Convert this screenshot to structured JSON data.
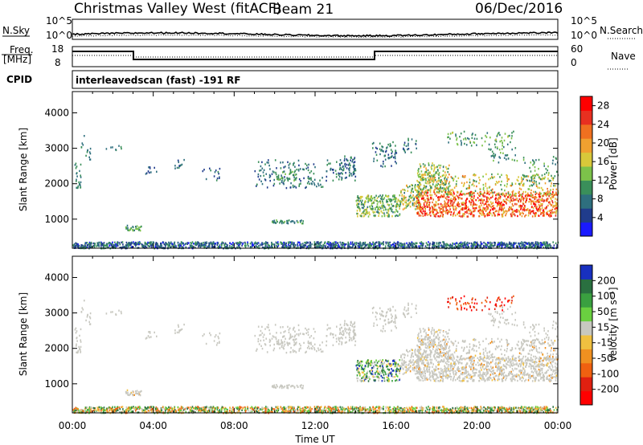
{
  "header": {
    "title": "Christmas Valley West (fitACF)",
    "beam": "Beam 21",
    "date": "06/Dec/2016"
  },
  "status_panels": {
    "nsky_label": "N.Sky",
    "nsearch_label": "N.Search",
    "nsky_ticks": [
      "10^5",
      "10^0"
    ],
    "nsearch_ticks": [
      "10^5",
      "10^0"
    ],
    "freq_label_line1": "Freq.",
    "freq_label_line2": "[MHz]",
    "freq_ticks": [
      "18",
      "8"
    ],
    "nave_label": "Nave",
    "nave_ticks": [
      "60",
      "0"
    ],
    "cpid_label": "CPID",
    "cpid_text": "interleavedscan (fast) -191 RF"
  },
  "colors": {
    "power_scale": [
      "#1a1aff",
      "#203c8c",
      "#2e6f7e",
      "#3a8f5a",
      "#7cc24a",
      "#d8c83a",
      "#f0a030",
      "#f07020",
      "#e83020",
      "#ff0000"
    ],
    "velocity_scale": [
      "#1830c0",
      "#2a7040",
      "#3aa040",
      "#6ad040",
      "#c8c8c0",
      "#f0c040",
      "#f09020",
      "#f06010",
      "#e02010",
      "#ff0000"
    ],
    "ground_scatter": "#c8c8c0"
  },
  "chart_data": [
    {
      "type": "heatmap",
      "name": "power",
      "ylabel": "Slant Range [km]",
      "xlabel": "",
      "ylim": [
        180,
        4600
      ],
      "yticks": [
        "1000",
        "2000",
        "3000",
        "4000"
      ],
      "xticks": [
        "00:00",
        "04:00",
        "08:00",
        "12:00",
        "16:00",
        "20:00",
        "00:00"
      ],
      "colorbar_label": "Power [dB]",
      "colorbar_ticks": [
        "4",
        "8",
        "12",
        "16",
        "20",
        "24",
        "28"
      ],
      "colorbar_range": [
        0,
        30
      ]
    },
    {
      "type": "heatmap",
      "name": "velocity",
      "ylabel": "Slant Range [km]",
      "xlabel": "Time UT",
      "ylim": [
        180,
        4600
      ],
      "yticks": [
        "1000",
        "2000",
        "3000",
        "4000"
      ],
      "xticks": [
        "00:00",
        "04:00",
        "08:00",
        "12:00",
        "16:00",
        "20:00",
        "00:00"
      ],
      "colorbar_label": "Velocity [m s⁻¹]",
      "colorbar_ticks": [
        "200",
        "100",
        "50",
        "15",
        "-15",
        "-50",
        "-100",
        "-200"
      ]
    }
  ]
}
